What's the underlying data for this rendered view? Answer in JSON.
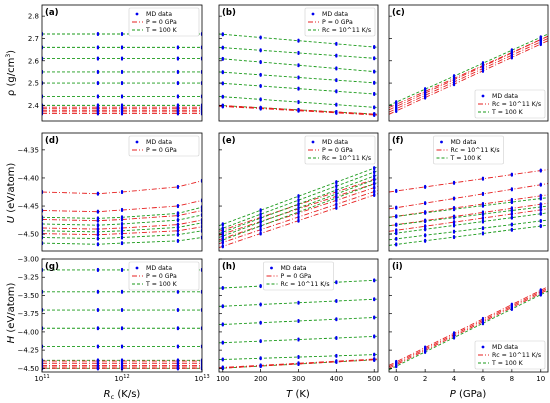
{
  "figure": {
    "row_labels": {
      "rho": [
        "ρ (g/cm",
        "3",
        ")"
      ],
      "U": [
        "U",
        " (eV/atom)"
      ],
      "H": [
        "H",
        " (eV/atom)"
      ]
    },
    "col_labels": {
      "Rc": [
        "R",
        "c",
        " (K/s)"
      ],
      "T": [
        "T",
        " (K)"
      ],
      "P": [
        "P",
        " (GPa)"
      ]
    },
    "colors": {
      "md": "#0000ee",
      "red": "#e62020",
      "green": "#1a9a1a"
    }
  },
  "chart_data": [
    {
      "panel": "(a)",
      "type": "scatter",
      "x_scale": "log",
      "xlim": [
        100000000000,
        10000000000000
      ],
      "ylim": [
        2.33,
        2.85
      ],
      "yticks": [
        2.4,
        2.5,
        2.6,
        2.7,
        2.8
      ],
      "ytick_labels": [
        "2.4",
        "2.5",
        "2.6",
        "2.7",
        "2.8"
      ],
      "xticks": [],
      "xtick_labels": [],
      "x_points": [
        100000000000,
        500000000000,
        1000000000000,
        5000000000000,
        10000000000000
      ],
      "legend": {
        "pos": "top-right",
        "entries": [
          {
            "label": "MD data",
            "style": "md"
          },
          {
            "label": "P = 0 GPa",
            "style": "red"
          },
          {
            "label": "T = 100 K",
            "style": "green"
          }
        ]
      },
      "series": [
        {
          "name": "T = 100 K",
          "style": "green",
          "lines": [
            [
              2.4,
              2.4
            ],
            [
              2.44,
              2.44
            ],
            [
              2.5,
              2.5
            ],
            [
              2.55,
              2.55
            ],
            [
              2.61,
              2.61
            ],
            [
              2.66,
              2.66
            ],
            [
              2.72,
              2.72
            ]
          ]
        },
        {
          "name": "P = 0 GPa",
          "style": "red",
          "lines": [
            [
              2.392,
              2.392
            ],
            [
              2.385,
              2.385
            ],
            [
              2.378,
              2.378
            ],
            [
              2.371,
              2.371
            ],
            [
              2.364,
              2.364
            ]
          ]
        }
      ]
    },
    {
      "panel": "(b)",
      "type": "scatter",
      "x_scale": "linear",
      "xlim": [
        90,
        510
      ],
      "ylim": [
        2.33,
        2.85
      ],
      "yticks": [
        2.4,
        2.5,
        2.6,
        2.7,
        2.8
      ],
      "ytick_labels": [],
      "xticks": [],
      "xtick_labels": [],
      "x_points": [
        100,
        200,
        300,
        400,
        500
      ],
      "legend": {
        "pos": "top-right",
        "entries": [
          {
            "label": "MD data",
            "style": "md"
          },
          {
            "label": "P = 0 GPa",
            "style": "red"
          },
          {
            "label": "Rc = 10^11 K/s",
            "style": "green"
          }
        ]
      },
      "series": [
        {
          "name": "Rc = 10^11 K/s",
          "style": "green",
          "lines": [
            [
              2.72,
              2.66
            ],
            [
              2.66,
              2.61
            ],
            [
              2.61,
              2.55
            ],
            [
              2.55,
              2.5
            ],
            [
              2.5,
              2.45
            ],
            [
              2.44,
              2.39
            ],
            [
              2.4,
              2.36
            ]
          ]
        },
        {
          "name": "P = 0 GPa",
          "style": "red",
          "lines": [
            [
              2.4,
              2.36
            ],
            [
              2.398,
              2.358
            ],
            [
              2.396,
              2.356
            ]
          ]
        }
      ]
    },
    {
      "panel": "(c)",
      "type": "scatter",
      "x_scale": "linear",
      "xlim": [
        -0.5,
        10.5
      ],
      "ylim": [
        2.33,
        2.85
      ],
      "yticks": [
        2.4,
        2.5,
        2.6,
        2.7,
        2.8
      ],
      "ytick_labels": [],
      "xticks": [],
      "xtick_labels": [],
      "x_points": [
        0,
        2,
        4,
        6,
        8,
        10
      ],
      "legend": {
        "pos": "bottom-right",
        "entries": [
          {
            "label": "MD data",
            "style": "md"
          },
          {
            "label": "Rc = 10^11 K/s",
            "style": "red"
          },
          {
            "label": "T = 100 K",
            "style": "green"
          }
        ]
      },
      "series": [
        {
          "name": "Rc = 10^11 K/s",
          "style": "red",
          "lines": [
            [
              2.36,
              2.69
            ],
            [
              2.37,
              2.7
            ],
            [
              2.38,
              2.71
            ],
            [
              2.39,
              2.71
            ]
          ]
        },
        {
          "name": "T = 100 K",
          "style": "green",
          "lines": [
            [
              2.4,
              2.72
            ]
          ]
        }
      ]
    },
    {
      "panel": "(d)",
      "type": "scatter",
      "x_scale": "log",
      "xlim": [
        100000000000,
        10000000000000
      ],
      "ylim": [
        -4.53,
        -4.32
      ],
      "yticks": [
        -4.35,
        -4.4,
        -4.45,
        -4.5
      ],
      "ytick_labels": [
        "−4.35",
        "−4.40",
        "−4.45",
        "−4.50"
      ],
      "xticks": [],
      "xtick_labels": [],
      "x_points": [
        100000000000,
        500000000000,
        1000000000000,
        5000000000000,
        10000000000000
      ],
      "legend": {
        "pos": "top-right",
        "entries": [
          {
            "label": "MD data",
            "style": "md"
          },
          {
            "label": "P = 0 GPa",
            "style": "red"
          }
        ]
      },
      "series": [
        {
          "name": "P = 0 GPa",
          "style": "red",
          "curves": [
            [
              -4.425,
              -4.428,
              -4.425,
              -4.416,
              -4.405
            ],
            [
              -4.458,
              -4.46,
              -4.457,
              -4.45,
              -4.44
            ],
            [
              -4.474,
              -4.476,
              -4.474,
              -4.467,
              -4.458
            ],
            [
              -4.489,
              -4.491,
              -4.489,
              -4.483,
              -4.475
            ],
            [
              -4.499,
              -4.501,
              -4.499,
              -4.494,
              -4.487
            ]
          ]
        },
        {
          "name": "T = 100 K",
          "style": "green",
          "curves": [
            [
              -4.47,
              -4.472,
              -4.47,
              -4.463,
              -4.452
            ],
            [
              -4.482,
              -4.484,
              -4.482,
              -4.475,
              -4.466
            ],
            [
              -4.494,
              -4.496,
              -4.494,
              -4.488,
              -4.48
            ],
            [
              -4.506,
              -4.508,
              -4.506,
              -4.501,
              -4.494
            ],
            [
              -4.516,
              -4.518,
              -4.516,
              -4.512,
              -4.506
            ]
          ]
        }
      ]
    },
    {
      "panel": "(e)",
      "type": "scatter",
      "x_scale": "linear",
      "xlim": [
        90,
        510
      ],
      "ylim": [
        -4.53,
        -4.32
      ],
      "yticks": [
        -4.35,
        -4.4,
        -4.45,
        -4.5
      ],
      "ytick_labels": [],
      "xticks": [],
      "xtick_labels": [],
      "x_points": [
        100,
        200,
        300,
        400,
        500
      ],
      "legend": {
        "pos": "top-right",
        "entries": [
          {
            "label": "MD data",
            "style": "md"
          },
          {
            "label": "P = 0 GPa",
            "style": "red"
          },
          {
            "label": "Rc = 10^11 K/s",
            "style": "green"
          }
        ]
      },
      "series": [
        {
          "name": "P = 0 GPa",
          "style": "red",
          "lines": [
            [
              -4.495,
              -4.4
            ],
            [
              -4.502,
              -4.408
            ],
            [
              -4.51,
              -4.415
            ],
            [
              -4.517,
              -4.422
            ],
            [
              -4.524,
              -4.428
            ]
          ]
        },
        {
          "name": "Rc = 10^11 K/s",
          "style": "green",
          "lines": [
            [
              -4.485,
              -4.38
            ],
            [
              -4.492,
              -4.387
            ],
            [
              -4.499,
              -4.394
            ],
            [
              -4.506,
              -4.401
            ],
            [
              -4.513,
              -4.408
            ]
          ]
        }
      ]
    },
    {
      "panel": "(f)",
      "type": "scatter",
      "x_scale": "linear",
      "xlim": [
        -0.5,
        10.5
      ],
      "ylim": [
        -4.53,
        -4.32
      ],
      "yticks": [
        -4.35,
        -4.4,
        -4.45,
        -4.5
      ],
      "ytick_labels": [],
      "xticks": [],
      "xtick_labels": [],
      "x_points": [
        0,
        2,
        4,
        6,
        8,
        10
      ],
      "legend": {
        "pos": "top",
        "entries": [
          {
            "label": "MD data",
            "style": "md"
          },
          {
            "label": "Rc = 10^11 K/s",
            "style": "red"
          },
          {
            "label": "T = 100 K",
            "style": "green"
          }
        ]
      },
      "series": [
        {
          "name": "Rc = 10^11 K/s",
          "style": "red",
          "lines": [
            [
              -4.425,
              -4.385
            ],
            [
              -4.455,
              -4.41
            ],
            [
              -4.47,
              -4.43
            ],
            [
              -4.485,
              -4.445
            ],
            [
              -4.495,
              -4.455
            ]
          ]
        },
        {
          "name": "T = 100 K",
          "style": "green",
          "lines": [
            [
              -4.47,
              -4.435
            ],
            [
              -4.485,
              -4.45
            ],
            [
              -4.5,
              -4.462
            ],
            [
              -4.51,
              -4.475
            ],
            [
              -4.52,
              -4.484
            ]
          ]
        }
      ]
    },
    {
      "panel": "(g)",
      "type": "scatter",
      "x_scale": "log",
      "xlim": [
        100000000000,
        10000000000000
      ],
      "ylim": [
        -4.55,
        -3.0
      ],
      "yticks": [
        -3.0,
        -3.25,
        -3.5,
        -3.75,
        -4.0,
        -4.25,
        -4.5
      ],
      "ytick_labels": [
        "−3.00",
        "−3.25",
        "−3.50",
        "−3.75",
        "−4.00",
        "−4.25",
        "−4.50"
      ],
      "xticks": [
        100000000000,
        1000000000000,
        10000000000000
      ],
      "xtick_labels": [
        [
          "10",
          "11"
        ],
        [
          "10",
          "12"
        ],
        [
          "10",
          "13"
        ]
      ],
      "x_points": [
        100000000000,
        500000000000,
        1000000000000,
        5000000000000,
        10000000000000
      ],
      "legend": {
        "pos": "top-right",
        "entries": [
          {
            "label": "MD data",
            "style": "md"
          },
          {
            "label": "P = 0 GPa",
            "style": "red"
          },
          {
            "label": "T = 100 K",
            "style": "green"
          }
        ]
      },
      "series": [
        {
          "name": "T = 100 K",
          "style": "green",
          "lines": [
            [
              -3.15,
              -3.15
            ],
            [
              -3.45,
              -3.45
            ],
            [
              -3.7,
              -3.7
            ],
            [
              -3.95,
              -3.95
            ],
            [
              -4.2,
              -4.2
            ],
            [
              -4.39,
              -4.39
            ],
            [
              -4.5,
              -4.5
            ]
          ]
        },
        {
          "name": "P = 0 GPa",
          "style": "red",
          "lines": [
            [
              -4.4,
              -4.4
            ],
            [
              -4.43,
              -4.43
            ],
            [
              -4.46,
              -4.46
            ],
            [
              -4.48,
              -4.48
            ],
            [
              -4.5,
              -4.5
            ]
          ]
        }
      ]
    },
    {
      "panel": "(h)",
      "type": "scatter",
      "x_scale": "linear",
      "xlim": [
        90,
        510
      ],
      "ylim": [
        -4.55,
        -3.0
      ],
      "yticks": [
        -3.0,
        -3.25,
        -3.5,
        -3.75,
        -4.0,
        -4.25,
        -4.5
      ],
      "ytick_labels": [],
      "xticks": [
        100,
        200,
        300,
        400,
        500
      ],
      "xtick_labels": [
        "100",
        "200",
        "300",
        "400",
        "500"
      ],
      "x_points": [
        100,
        200,
        300,
        400,
        500
      ],
      "legend": {
        "pos": "top",
        "entries": [
          {
            "label": "MD data",
            "style": "md"
          },
          {
            "label": "P = 0 GPa",
            "style": "red"
          },
          {
            "label": "Rc = 10^11 K/s",
            "style": "green"
          }
        ]
      },
      "series": [
        {
          "name": "Rc = 10^11 K/s",
          "style": "green",
          "lines": [
            [
              -3.4,
              -3.29
            ],
            [
              -3.65,
              -3.55
            ],
            [
              -3.9,
              -3.8
            ],
            [
              -4.15,
              -4.06
            ],
            [
              -4.38,
              -4.31
            ],
            [
              -4.5,
              -4.38
            ]
          ]
        },
        {
          "name": "P = 0 GPa",
          "style": "red",
          "lines": [
            [
              -4.5,
              -4.38
            ],
            [
              -4.49,
              -4.37
            ]
          ]
        }
      ]
    },
    {
      "panel": "(i)",
      "type": "scatter",
      "x_scale": "linear",
      "xlim": [
        -0.5,
        10.5
      ],
      "ylim": [
        -4.55,
        -3.0
      ],
      "yticks": [
        -3.0,
        -3.25,
        -3.5,
        -3.75,
        -4.0,
        -4.25,
        -4.5
      ],
      "ytick_labels": [],
      "xticks": [
        0,
        2,
        4,
        6,
        8,
        10
      ],
      "xtick_labels": [
        "0",
        "2",
        "4",
        "6",
        "8",
        "10"
      ],
      "x_points": [
        0,
        2,
        4,
        6,
        8,
        10
      ],
      "legend": {
        "pos": "bottom-right",
        "entries": [
          {
            "label": "MD data",
            "style": "md"
          },
          {
            "label": "Rc = 10^11 K/s",
            "style": "red"
          },
          {
            "label": "T = 100 K",
            "style": "green"
          }
        ]
      },
      "series": [
        {
          "name": "Rc = 10^11 K/s",
          "style": "red",
          "lines": [
            [
              -4.46,
              -3.38
            ],
            [
              -4.48,
              -3.4
            ],
            [
              -4.5,
              -3.42
            ]
          ]
        },
        {
          "name": "T = 100 K",
          "style": "green",
          "lines": [
            [
              -4.52,
              -3.44
            ]
          ]
        }
      ]
    }
  ]
}
